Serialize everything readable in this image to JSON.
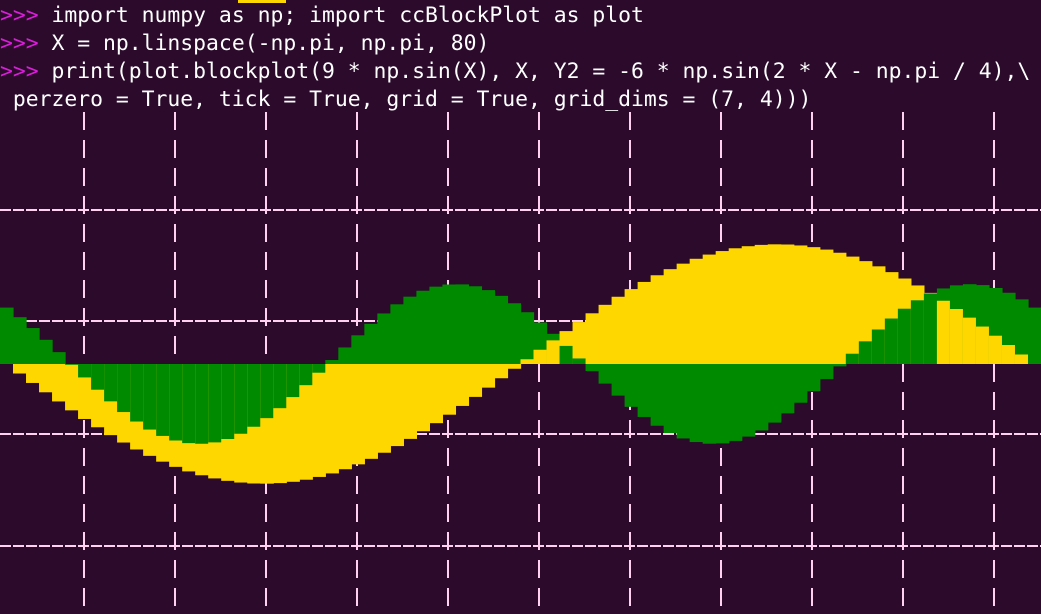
{
  "terminal": {
    "background": "#2b0a2b",
    "prompt": ">>>",
    "prompt_color": "#d81fd8",
    "text_color": "#ffffff",
    "lines": [
      {
        "prompt": ">>>",
        "code": " import numpy as np; import ccBlockPlot as plot"
      },
      {
        "prompt": ">>>",
        "code": " X = np.linspace(-np.pi, np.pi, 80)"
      },
      {
        "prompt": ">>>",
        "code": " print(plot.blockplot(9 * np.sin(X), X, Y2 = -6 * np.sin(2 * X - np.pi / 4),\\"
      },
      {
        "prompt": "",
        "code": " perzero = True, tick = True, grid = True, grid_dims = (7, 4)))"
      }
    ]
  },
  "chart_data": {
    "type": "area",
    "title": "",
    "xlabel": "",
    "ylabel": "",
    "x_range": [
      -3.1416,
      3.1416
    ],
    "n_points": 80,
    "ylim": [
      -9,
      9
    ],
    "baseline": 0,
    "grid": true,
    "grid_dims": [
      7,
      4
    ],
    "grid_color": "#ffd0f0",
    "series": [
      {
        "formula": "9 * sin(X)",
        "color": "#ffd700",
        "amplitude": 9,
        "frequency": 1,
        "phase": 0
      },
      {
        "formula": "-6 * sin(2 * X - pi / 4)",
        "color": "#008a00",
        "amplitude": -6,
        "frequency": 2,
        "phase": -0.7854
      }
    ]
  }
}
